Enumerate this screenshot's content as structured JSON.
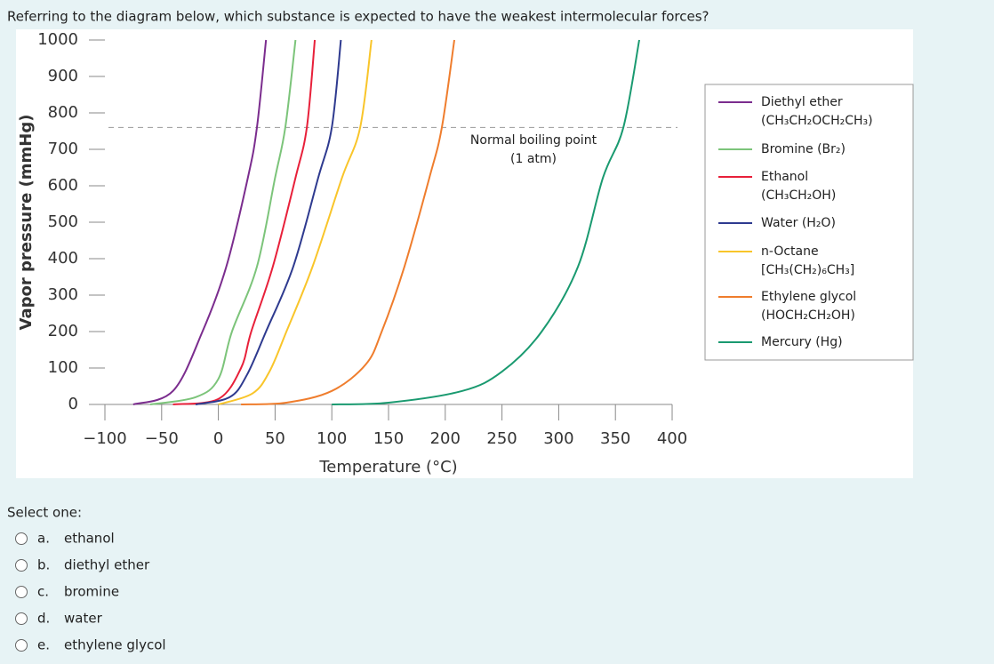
{
  "question": "Referring to the diagram below, which substance is expected to have the weakest intermolecular forces?",
  "chart_data": {
    "type": "line",
    "xlabel": "Temperature (°C)",
    "ylabel": "Vapor pressure (mmHg)",
    "xlim": [
      -100,
      400
    ],
    "ylim": [
      0,
      1000
    ],
    "xticks": [
      {
        "value": -100,
        "label": "−100"
      },
      {
        "value": -50,
        "label": "−50"
      },
      0,
      50,
      100,
      150,
      200,
      250,
      300,
      350,
      400
    ],
    "yticks": [
      0,
      100,
      200,
      300,
      400,
      500,
      600,
      700,
      800,
      900,
      1000
    ],
    "reference_line": 760,
    "annotation": [
      "Normal boiling point",
      "(1 atm)"
    ],
    "series": [
      {
        "name": "Diethyl ether",
        "formula": "(CH₃CH₂OCH₂CH₃)",
        "color": "#7b2d8e",
        "x": [
          -75,
          -40,
          -14,
          7,
          26,
          34,
          42
        ],
        "values": [
          0,
          37,
          200,
          378,
          622,
          760,
          1000
        ]
      },
      {
        "name": "Bromine (Br₂)",
        "color": "#7cc47a",
        "x": [
          -60,
          -20,
          0,
          12,
          34,
          50,
          59,
          68
        ],
        "values": [
          0,
          20,
          70,
          200,
          378,
          622,
          760,
          1000
        ]
      },
      {
        "name": "Ethanol",
        "formula": "(CH₃CH₂OH)",
        "color": "#e8203a",
        "x": [
          -40,
          0,
          20,
          29,
          48,
          68,
          78,
          85
        ],
        "values": [
          0,
          15,
          100,
          200,
          378,
          622,
          760,
          1000
        ]
      },
      {
        "name": "Water (H₂O)",
        "color": "#2e3a8f",
        "x": [
          -20,
          10,
          25,
          42,
          66,
          88,
          100,
          108
        ],
        "values": [
          0,
          20,
          80,
          200,
          378,
          622,
          760,
          1000
        ]
      },
      {
        "name": "n-Octane",
        "formula": "[CH₃(CH₂)₆CH₃]",
        "color": "#f9c52a",
        "x": [
          0,
          30,
          45,
          60,
          83,
          109,
          125,
          135
        ],
        "values": [
          0,
          30,
          90,
          200,
          378,
          622,
          760,
          1000
        ]
      },
      {
        "name": "Ethylene glycol",
        "formula": "(HOCH₂CH₂OH)",
        "color": "#ef7d2d",
        "x": [
          20,
          60,
          100,
          130,
          144,
          164,
          186,
          197,
          208
        ],
        "values": [
          0,
          5,
          37,
          110,
          200,
          378,
          622,
          760,
          1000
        ]
      },
      {
        "name": "Mercury (Hg)",
        "color": "#1a9a70",
        "x": [
          100,
          150,
          215,
          250,
          285,
          317,
          339,
          357,
          371
        ],
        "values": [
          0,
          5,
          37,
          90,
          200,
          378,
          622,
          760,
          1000
        ]
      }
    ]
  },
  "prompt": "Select one:",
  "options": [
    {
      "letter": "a.",
      "text": "ethanol"
    },
    {
      "letter": "b.",
      "text": "diethyl ether"
    },
    {
      "letter": "c.",
      "text": "bromine"
    },
    {
      "letter": "d.",
      "text": "water"
    },
    {
      "letter": "e.",
      "text": "ethylene glycol"
    }
  ]
}
